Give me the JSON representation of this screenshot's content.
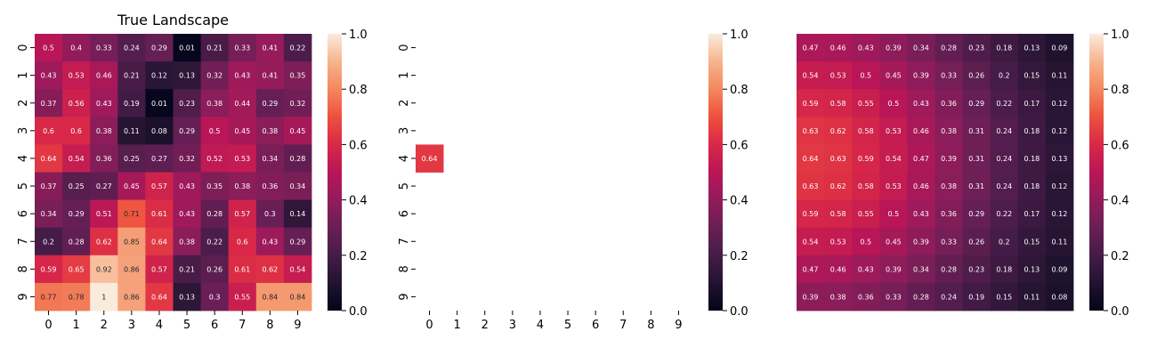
{
  "chart_data": [
    {
      "type": "heatmap",
      "title": "True Landscape",
      "xticklabels": [
        "0",
        "1",
        "2",
        "3",
        "4",
        "5",
        "6",
        "7",
        "8",
        "9"
      ],
      "yticklabels": [
        "0",
        "1",
        "2",
        "3",
        "4",
        "5",
        "6",
        "7",
        "8",
        "9"
      ],
      "show_xticks": true,
      "show_yticks": true,
      "annotate": true,
      "vmin": 0,
      "vmax": 1,
      "colormap": "rocket",
      "colorbar_ticks": [
        "0.0",
        "0.2",
        "0.4",
        "0.6",
        "0.8",
        "1.0"
      ],
      "values": [
        [
          0.5,
          0.4,
          0.33,
          0.24,
          0.29,
          0.01,
          0.21,
          0.33,
          0.41,
          0.22
        ],
        [
          0.43,
          0.53,
          0.46,
          0.21,
          0.12,
          0.13,
          0.32,
          0.43,
          0.41,
          0.35
        ],
        [
          0.37,
          0.56,
          0.43,
          0.19,
          0.01,
          0.23,
          0.38,
          0.44,
          0.29,
          0.32
        ],
        [
          0.6,
          0.6,
          0.38,
          0.11,
          0.08,
          0.29,
          0.5,
          0.45,
          0.38,
          0.45
        ],
        [
          0.64,
          0.54,
          0.36,
          0.25,
          0.27,
          0.32,
          0.52,
          0.53,
          0.34,
          0.28
        ],
        [
          0.37,
          0.25,
          0.27,
          0.45,
          0.57,
          0.43,
          0.35,
          0.38,
          0.36,
          0.34
        ],
        [
          0.34,
          0.29,
          0.51,
          0.71,
          0.61,
          0.43,
          0.28,
          0.57,
          0.3,
          0.14
        ],
        [
          0.2,
          0.28,
          0.62,
          0.85,
          0.64,
          0.38,
          0.22,
          0.6,
          0.43,
          0.29
        ],
        [
          0.59,
          0.65,
          0.92,
          0.86,
          0.57,
          0.21,
          0.26,
          0.61,
          0.62,
          0.54
        ],
        [
          0.77,
          0.78,
          1,
          0.86,
          0.64,
          0.13,
          0.3,
          0.55,
          0.84,
          0.84
        ]
      ]
    },
    {
      "type": "heatmap",
      "title": "",
      "xticklabels": [
        "0",
        "1",
        "2",
        "3",
        "4",
        "5",
        "6",
        "7",
        "8",
        "9"
      ],
      "yticklabels": [
        "0",
        "1",
        "2",
        "3",
        "4",
        "5",
        "6",
        "7",
        "8",
        "9"
      ],
      "show_xticks": true,
      "show_yticks": true,
      "annotate": true,
      "vmin": 0,
      "vmax": 1,
      "colormap": "rocket",
      "colorbar_ticks": [
        "0.0",
        "0.2",
        "0.4",
        "0.6",
        "0.8",
        "1.0"
      ],
      "values": [
        [
          null,
          null,
          null,
          null,
          null,
          null,
          null,
          null,
          null,
          null
        ],
        [
          null,
          null,
          null,
          null,
          null,
          null,
          null,
          null,
          null,
          null
        ],
        [
          null,
          null,
          null,
          null,
          null,
          null,
          null,
          null,
          null,
          null
        ],
        [
          null,
          null,
          null,
          null,
          null,
          null,
          null,
          null,
          null,
          null
        ],
        [
          0.64,
          null,
          null,
          null,
          null,
          null,
          null,
          null,
          null,
          null
        ],
        [
          null,
          null,
          null,
          null,
          null,
          null,
          null,
          null,
          null,
          null
        ],
        [
          null,
          null,
          null,
          null,
          null,
          null,
          null,
          null,
          null,
          null
        ],
        [
          null,
          null,
          null,
          null,
          null,
          null,
          null,
          null,
          null,
          null
        ],
        [
          null,
          null,
          null,
          null,
          null,
          null,
          null,
          null,
          null,
          null
        ],
        [
          null,
          null,
          null,
          null,
          null,
          null,
          null,
          null,
          null,
          null
        ]
      ]
    },
    {
      "type": "heatmap",
      "title": "",
      "xticklabels": [],
      "yticklabels": [],
      "show_xticks": false,
      "show_yticks": false,
      "annotate": true,
      "vmin": 0,
      "vmax": 1,
      "colormap": "rocket",
      "colorbar_ticks": [
        "0.0",
        "0.2",
        "0.4",
        "0.6",
        "0.8",
        "1.0"
      ],
      "values": [
        [
          0.47,
          0.46,
          0.43,
          0.39,
          0.34,
          0.28,
          0.23,
          0.18,
          0.13,
          0.09
        ],
        [
          0.54,
          0.53,
          0.5,
          0.45,
          0.39,
          0.33,
          0.26,
          0.2,
          0.15,
          0.11
        ],
        [
          0.59,
          0.58,
          0.55,
          0.5,
          0.43,
          0.36,
          0.29,
          0.22,
          0.17,
          0.12
        ],
        [
          0.63,
          0.62,
          0.58,
          0.53,
          0.46,
          0.38,
          0.31,
          0.24,
          0.18,
          0.12
        ],
        [
          0.64,
          0.63,
          0.59,
          0.54,
          0.47,
          0.39,
          0.31,
          0.24,
          0.18,
          0.13
        ],
        [
          0.63,
          0.62,
          0.58,
          0.53,
          0.46,
          0.38,
          0.31,
          0.24,
          0.18,
          0.12
        ],
        [
          0.59,
          0.58,
          0.55,
          0.5,
          0.43,
          0.36,
          0.29,
          0.22,
          0.17,
          0.12
        ],
        [
          0.54,
          0.53,
          0.5,
          0.45,
          0.39,
          0.33,
          0.26,
          0.2,
          0.15,
          0.11
        ],
        [
          0.47,
          0.46,
          0.43,
          0.39,
          0.34,
          0.28,
          0.23,
          0.18,
          0.13,
          0.09
        ],
        [
          0.39,
          0.38,
          0.36,
          0.33,
          0.28,
          0.24,
          0.19,
          0.15,
          0.11,
          0.08
        ]
      ]
    }
  ]
}
